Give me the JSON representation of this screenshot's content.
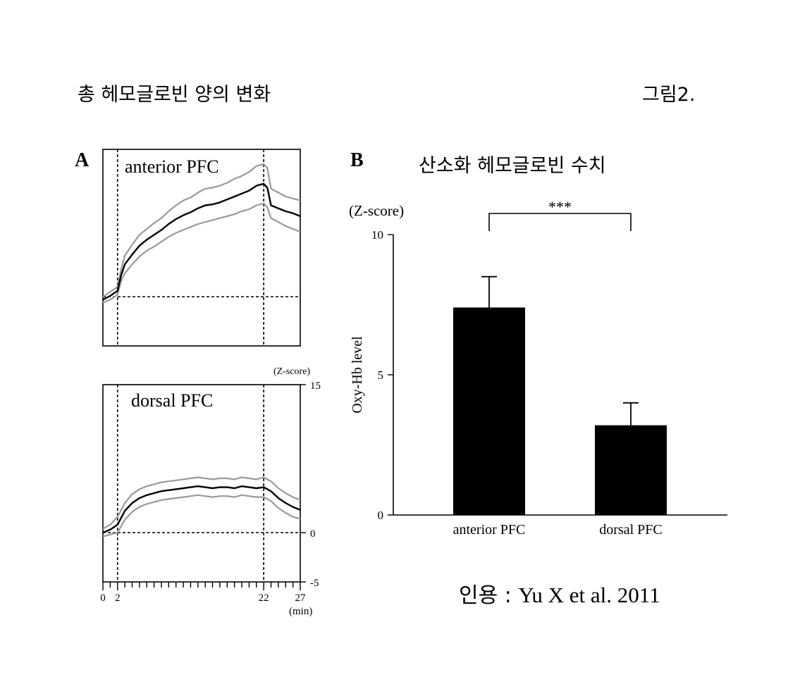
{
  "header": {
    "title": "총 헤모글로빈 양의 변화",
    "figure_label": "그림2."
  },
  "panel_a": {
    "letter": "A",
    "unit_label": "(Z-score)",
    "x_unit": "(min)",
    "x_ticks": [
      "0",
      "2",
      "22",
      "27"
    ],
    "y_ticks": [
      "15",
      "0",
      "-5"
    ]
  },
  "panel_b": {
    "letter": "B",
    "title": "산소화 헤모글로빈 수치",
    "unit_label": "(Z-score)",
    "significance": "***",
    "y_ticks": [
      "10",
      "5",
      "0"
    ]
  },
  "citation": {
    "prefix": "인용 : ",
    "source": "Yu X et al. 2011"
  },
  "colors": {
    "mean_line": "#000000",
    "sem_band": "#9a9a9a",
    "bar_fill": "#000000"
  },
  "chart_data": [
    {
      "type": "line",
      "panel": "A-top",
      "title": "anterior PFC",
      "xlabel": "(min)",
      "ylabel": "(Z-score)",
      "xlim": [
        0,
        27
      ],
      "ylim": [
        -5,
        15
      ],
      "x_ticks": [
        0,
        2,
        22,
        27
      ],
      "vlines": [
        2,
        22
      ],
      "hline": 0,
      "x": [
        0,
        1,
        2,
        2.5,
        3,
        4,
        5,
        6,
        7,
        8,
        9,
        10,
        11,
        12,
        13,
        14,
        15,
        16,
        17,
        18,
        19,
        20,
        21,
        22,
        22.5,
        23,
        24,
        25,
        26,
        27
      ],
      "series": [
        {
          "values": [
            -0.3,
            0.1,
            0.6,
            2.2,
            3.3,
            4.3,
            5.2,
            5.8,
            6.3,
            6.8,
            7.4,
            7.9,
            8.3,
            8.6,
            9.0,
            9.3,
            9.4,
            9.6,
            9.9,
            10.2,
            10.5,
            10.8,
            11.3,
            11.5,
            11.1,
            9.3,
            9.0,
            8.7,
            8.5,
            8.2
          ]
        },
        {
          "values": [
            -0.6,
            -0.3,
            0.2,
            1.6,
            2.4,
            3.3,
            4.1,
            4.7,
            5.1,
            5.6,
            6.1,
            6.5,
            6.8,
            7.1,
            7.4,
            7.6,
            7.8,
            8.0,
            8.2,
            8.4,
            8.7,
            8.9,
            9.3,
            9.5,
            9.1,
            8.0,
            7.6,
            7.2,
            6.9,
            6.6
          ]
        },
        {
          "values": [
            0.0,
            0.5,
            1.0,
            2.8,
            4.2,
            5.3,
            6.3,
            6.9,
            7.5,
            8.0,
            8.7,
            9.3,
            9.8,
            10.1,
            10.6,
            11.0,
            11.1,
            11.3,
            11.6,
            12.0,
            12.3,
            12.7,
            13.3,
            13.5,
            13.1,
            11.0,
            10.6,
            10.2,
            10.0,
            9.8
          ]
        }
      ]
    },
    {
      "type": "line",
      "panel": "A-bottom",
      "title": "dorsal PFC",
      "xlabel": "(min)",
      "ylabel": "(Z-score)",
      "xlim": [
        0,
        27
      ],
      "ylim": [
        -5,
        15
      ],
      "x_ticks": [
        0,
        2,
        22,
        27
      ],
      "y_ticks": [
        15,
        0,
        -5
      ],
      "vlines": [
        2,
        22
      ],
      "hline": 0,
      "x": [
        0,
        1,
        2,
        3,
        4,
        5,
        6,
        7,
        8,
        9,
        10,
        11,
        12,
        13,
        14,
        15,
        16,
        17,
        18,
        19,
        20,
        21,
        22,
        23,
        24,
        25,
        26,
        27
      ],
      "series": [
        {
          "values": [
            0.0,
            0.3,
            0.8,
            2.2,
            3.0,
            3.5,
            3.8,
            4.0,
            4.2,
            4.3,
            4.4,
            4.5,
            4.6,
            4.7,
            4.6,
            4.5,
            4.6,
            4.6,
            4.5,
            4.7,
            4.6,
            4.5,
            4.6,
            4.2,
            3.5,
            3.0,
            2.6,
            2.3
          ]
        },
        {
          "values": [
            -0.4,
            -0.2,
            0.0,
            1.3,
            2.1,
            2.6,
            2.9,
            3.1,
            3.3,
            3.4,
            3.5,
            3.6,
            3.7,
            3.8,
            3.7,
            3.6,
            3.7,
            3.7,
            3.6,
            3.8,
            3.7,
            3.6,
            3.6,
            3.2,
            2.5,
            2.0,
            1.6,
            1.4
          ]
        },
        {
          "values": [
            0.4,
            0.8,
            1.6,
            3.0,
            3.9,
            4.4,
            4.7,
            4.9,
            5.1,
            5.2,
            5.3,
            5.4,
            5.5,
            5.6,
            5.5,
            5.4,
            5.5,
            5.5,
            5.4,
            5.6,
            5.5,
            5.4,
            5.6,
            5.2,
            4.5,
            4.0,
            3.6,
            3.3
          ]
        }
      ]
    },
    {
      "type": "bar",
      "panel": "B",
      "title": "산소화 헤모글로빈 수치",
      "categories": [
        "anterior PFC",
        "dorsal PFC"
      ],
      "values": [
        7.4,
        3.2
      ],
      "errors": [
        1.1,
        0.8
      ],
      "ylabel": "Oxy-Hb level",
      "ylim": [
        0,
        10
      ],
      "y_ticks": [
        0,
        5,
        10
      ],
      "significance": "***"
    }
  ]
}
